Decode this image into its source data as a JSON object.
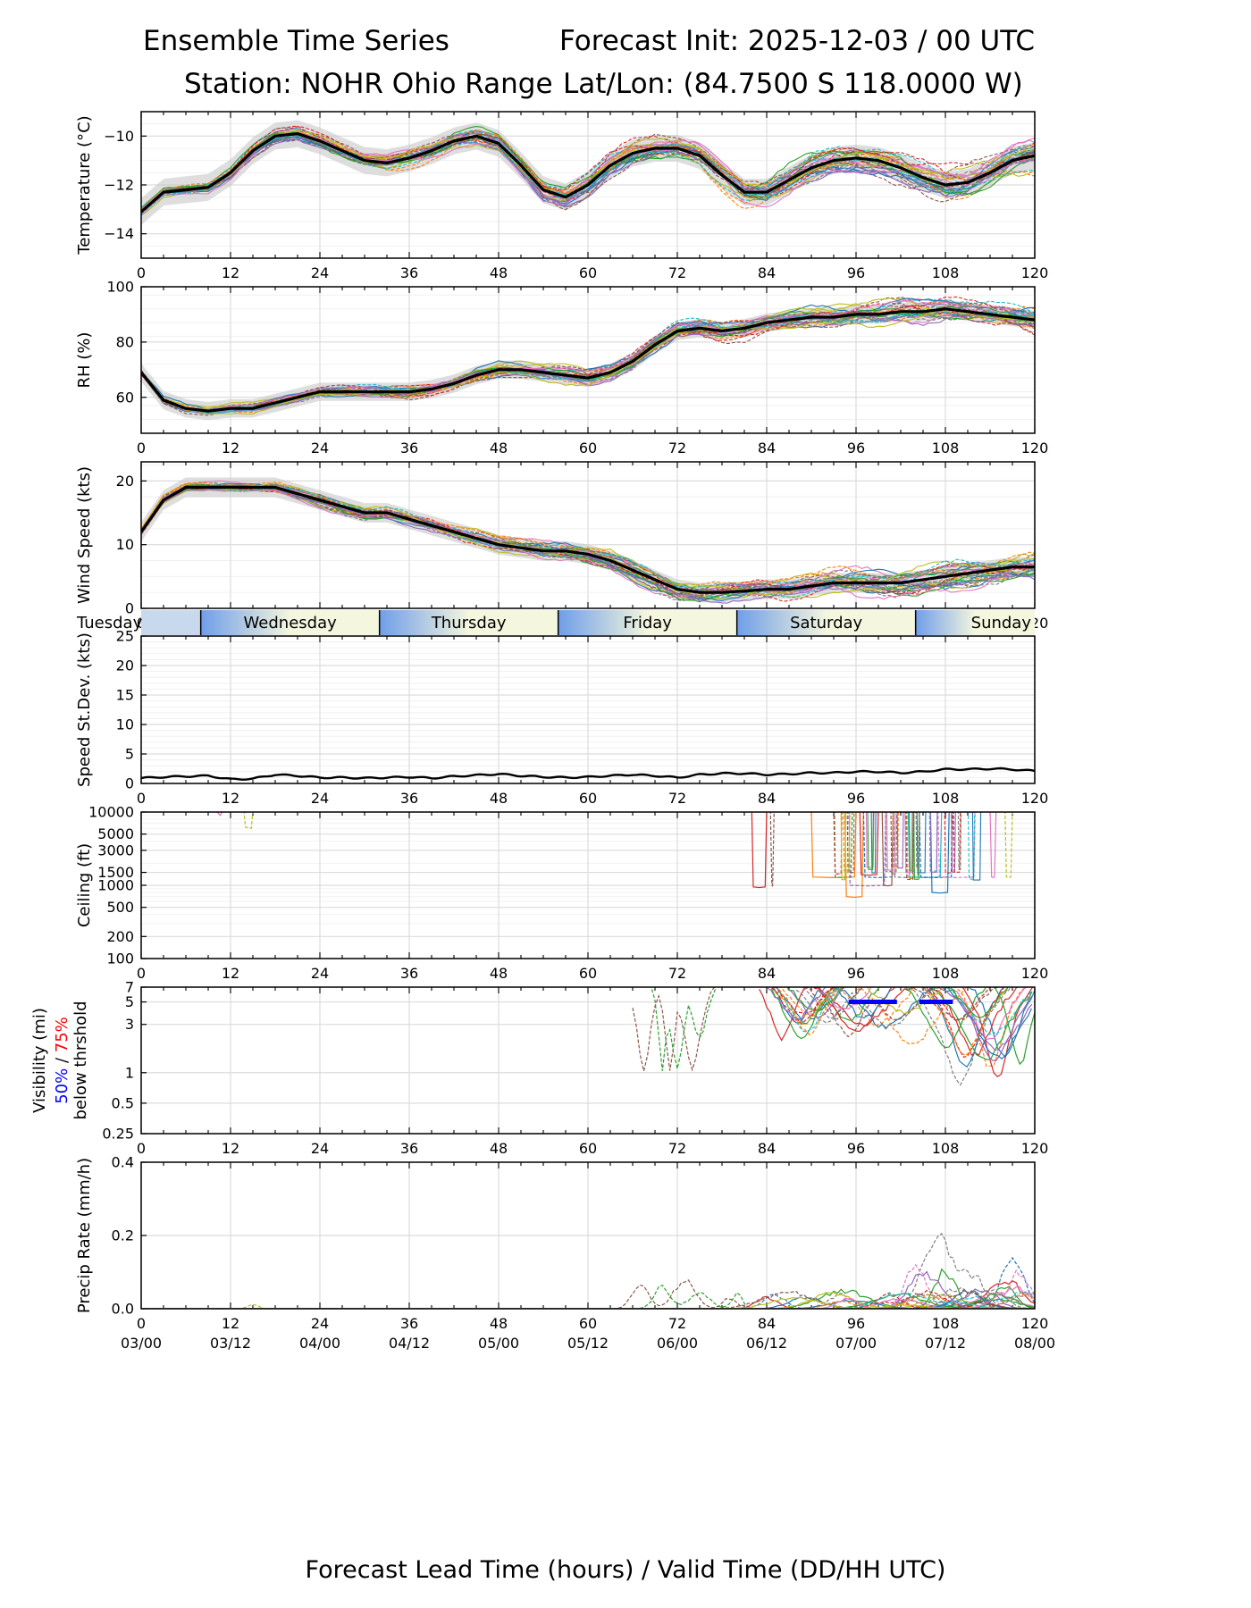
{
  "header": {
    "title_left": "Ensemble Time Series",
    "title_right": "Forecast Init: 2025-12-03 / 00 UTC",
    "station": "Station: NOHR Ohio Range",
    "latlon": "Lat/Lon: (84.7500 S 118.0000 W)"
  },
  "x_axis_label": "Forecast Lead Time (hours) / Valid Time (DD/HH UTC)",
  "lead_ticks": [
    "0",
    "12",
    "24",
    "36",
    "48",
    "60",
    "72",
    "84",
    "96",
    "108",
    "120"
  ],
  "valid_ticks": [
    "03/00",
    "03/12",
    "04/00",
    "04/12",
    "05/00",
    "05/12",
    "06/00",
    "06/12",
    "07/00",
    "07/12",
    "08/00"
  ],
  "days": [
    {
      "name": "Tuesday",
      "start": 0,
      "end": 8
    },
    {
      "name": "Wednesday",
      "start": 8,
      "end": 32
    },
    {
      "name": "Thursday",
      "start": 32,
      "end": 56
    },
    {
      "name": "Friday",
      "start": 56,
      "end": 80
    },
    {
      "name": "Saturday",
      "start": 80,
      "end": 104
    },
    {
      "name": "Sunday",
      "start": 104,
      "end": 120
    }
  ],
  "visibility_legend": {
    "line1": "Visibility (mi)",
    "pct50": "50%",
    "sep": " / ",
    "pct75": "75%",
    "line3": "below thrshold",
    "pct50_color": "#0000ff",
    "pct75_color": "#ff0000"
  },
  "colors": {
    "members": [
      "#1f77b4",
      "#ff7f0e",
      "#2ca02c",
      "#d62728",
      "#9467bd",
      "#8c564b",
      "#e377c2",
      "#7f7f7f",
      "#bcbd22",
      "#17becf"
    ],
    "mean": "#000000",
    "band": "#c8c8c8",
    "threshold_bar": "#0000ff"
  },
  "chart_data": [
    {
      "type": "line",
      "id": "temperature",
      "ylabel": "Temperature (°C)",
      "ylim": [
        -15,
        -9
      ],
      "yticks": [
        -14,
        -12,
        -10
      ],
      "ytick_labels": [
        "−14",
        "−12",
        "−10"
      ],
      "x": [
        0,
        3,
        6,
        9,
        12,
        15,
        18,
        21,
        24,
        27,
        30,
        33,
        36,
        39,
        42,
        45,
        48,
        51,
        54,
        57,
        60,
        63,
        66,
        69,
        72,
        75,
        78,
        81,
        84,
        87,
        90,
        93,
        96,
        99,
        102,
        105,
        108,
        111,
        114,
        117,
        120
      ],
      "mean": [
        -13.1,
        -12.3,
        -12.2,
        -12.1,
        -11.5,
        -10.6,
        -10.0,
        -9.9,
        -10.2,
        -10.6,
        -11.0,
        -11.1,
        -10.9,
        -10.6,
        -10.2,
        -10.0,
        -10.3,
        -11.2,
        -12.2,
        -12.5,
        -12.0,
        -11.2,
        -10.7,
        -10.5,
        -10.5,
        -10.8,
        -11.6,
        -12.3,
        -12.3,
        -11.8,
        -11.3,
        -11.0,
        -10.9,
        -11.0,
        -11.3,
        -11.7,
        -12.0,
        -11.9,
        -11.5,
        -11.0,
        -10.8
      ],
      "spread": 0.25,
      "noise": 0.35,
      "member_count": 30
    },
    {
      "type": "line",
      "id": "rh",
      "ylabel": "RH (%)",
      "ylim": [
        47,
        100
      ],
      "yticks": [
        60,
        80,
        100
      ],
      "ytick_labels": [
        "60",
        "80",
        "100"
      ],
      "x": [
        0,
        3,
        6,
        9,
        12,
        15,
        18,
        21,
        24,
        27,
        30,
        33,
        36,
        39,
        42,
        45,
        48,
        51,
        54,
        57,
        60,
        63,
        66,
        69,
        72,
        75,
        78,
        81,
        84,
        87,
        90,
        93,
        96,
        99,
        102,
        105,
        108,
        111,
        114,
        117,
        120
      ],
      "mean": [
        69,
        59,
        56,
        55,
        56,
        56,
        58,
        60,
        62,
        62,
        62,
        62,
        62,
        63,
        65,
        68,
        70,
        70,
        69,
        68,
        67,
        69,
        73,
        79,
        84,
        85,
        84,
        85,
        87,
        88,
        89,
        89,
        90,
        90,
        91,
        91,
        92,
        91,
        90,
        89,
        88
      ],
      "spread": 1.5,
      "noise": 2.5,
      "member_count": 30
    },
    {
      "type": "line",
      "id": "wind",
      "ylabel": "Wind Speed (kts)",
      "ylim": [
        0,
        23
      ],
      "yticks": [
        0,
        10,
        20
      ],
      "ytick_labels": [
        "0",
        "10",
        "20"
      ],
      "x": [
        0,
        3,
        6,
        9,
        12,
        15,
        18,
        21,
        24,
        27,
        30,
        33,
        36,
        39,
        42,
        45,
        48,
        51,
        54,
        57,
        60,
        63,
        66,
        69,
        72,
        75,
        78,
        81,
        84,
        87,
        90,
        93,
        96,
        99,
        102,
        105,
        108,
        111,
        114,
        117,
        120
      ],
      "mean": [
        12,
        17,
        19,
        19,
        19,
        19,
        19,
        18,
        17,
        16,
        15,
        15,
        14,
        13,
        12,
        11,
        10,
        9.5,
        9,
        9,
        8.5,
        7.5,
        6,
        4.5,
        3,
        2.5,
        2.5,
        2.7,
        3,
        3,
        3.5,
        4,
        4,
        4,
        4,
        4.5,
        5,
        5.5,
        6,
        6.5,
        6.5
      ],
      "spread": 0.7,
      "noise": 1.3,
      "member_count": 30
    },
    {
      "type": "line",
      "id": "speed_stdev",
      "ylabel": "Speed St.Dev. (kts)",
      "ylim": [
        0,
        25
      ],
      "yticks": [
        0,
        5,
        10,
        15,
        20,
        25
      ],
      "ytick_labels": [
        "0",
        "5",
        "10",
        "15",
        "20",
        "25"
      ],
      "x": [
        0,
        3,
        6,
        9,
        12,
        15,
        18,
        21,
        24,
        27,
        30,
        33,
        36,
        39,
        42,
        45,
        48,
        51,
        54,
        57,
        60,
        63,
        66,
        69,
        72,
        75,
        78,
        81,
        84,
        87,
        90,
        93,
        96,
        99,
        102,
        105,
        108,
        111,
        114,
        117,
        120
      ],
      "mean": [
        0.9,
        1.1,
        1.2,
        1.3,
        0.7,
        0.8,
        1.5,
        1.3,
        1.0,
        1.0,
        0.9,
        1.0,
        1.1,
        0.9,
        1.2,
        1.4,
        1.6,
        1.3,
        1.1,
        1.0,
        1.1,
        1.3,
        1.5,
        1.3,
        1.0,
        1.5,
        1.7,
        1.7,
        1.5,
        1.6,
        1.8,
        1.8,
        2.0,
        2.0,
        1.8,
        2.0,
        2.4,
        2.4,
        2.5,
        2.4,
        2.1
      ]
    },
    {
      "type": "line",
      "id": "ceiling",
      "ylabel": "Ceiling (ft)",
      "scale": "log",
      "ylim": [
        100,
        10000
      ],
      "yticks": [
        100,
        200,
        500,
        1000,
        1500,
        3000,
        5000,
        10000
      ],
      "ytick_labels": [
        "100",
        "200",
        "500",
        "1000",
        "1500",
        "3000",
        "5000",
        "10000"
      ],
      "x": [
        0,
        120
      ]
    },
    {
      "type": "line",
      "id": "visibility",
      "ylabel": "Visibility (mi)",
      "scale": "log",
      "ylim": [
        0.25,
        7
      ],
      "yticks": [
        0.25,
        0.5,
        1,
        3,
        5,
        7
      ],
      "ytick_labels": [
        "0.25",
        "0.5",
        "1",
        "3",
        "5",
        "7"
      ],
      "threshold_50_segments": [
        [
          95,
          101.5
        ],
        [
          104.5,
          109
        ]
      ],
      "threshold_value": 5,
      "x": [
        0,
        120
      ]
    },
    {
      "type": "line",
      "id": "precip",
      "ylabel": "Precip Rate (mm/h)",
      "ylim": [
        0,
        0.4
      ],
      "yticks": [
        0,
        0.2,
        0.4
      ],
      "ytick_labels": [
        "0.0",
        "0.2",
        "0.4"
      ],
      "x": [
        0,
        120
      ]
    }
  ]
}
